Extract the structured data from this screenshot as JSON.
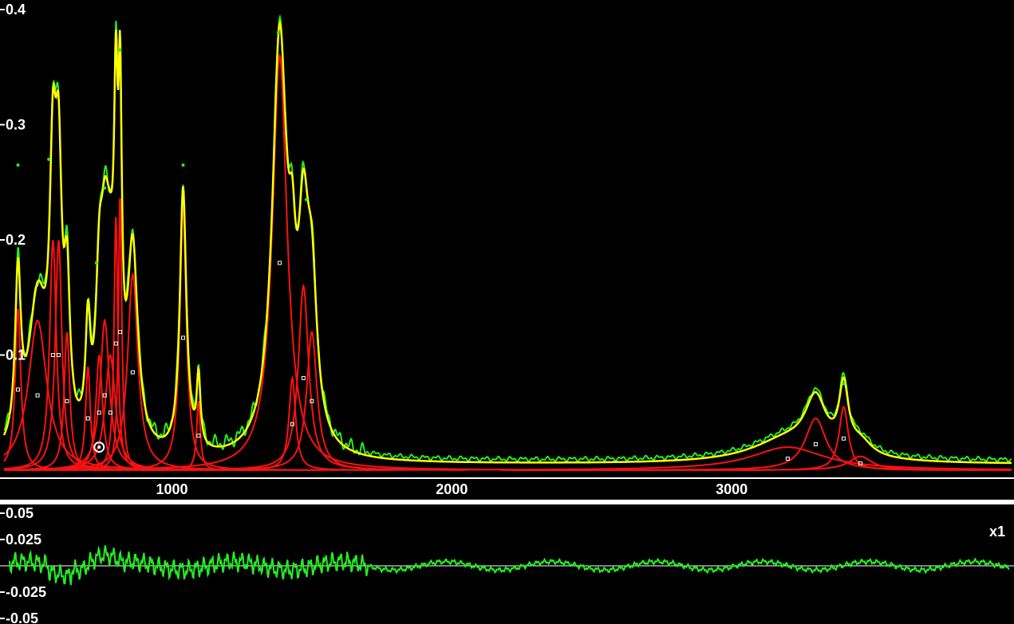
{
  "colors": {
    "background": "#000000",
    "separator": "#ffffff",
    "fit_envelope": "#ffff00",
    "measured": "#22ee22",
    "components": "#ff1010",
    "markers": "#ffffff",
    "residual": "#22ee22",
    "axis_text": "#ffffff"
  },
  "chart_data": [
    {
      "type": "line",
      "title": "",
      "xlabel": "",
      "ylabel": "",
      "xlim": [
        400,
        4000
      ],
      "ylim": [
        -0.02,
        0.4
      ],
      "x_ticks": [
        1000,
        2000,
        3000
      ],
      "x_tick_labels": [
        "1000",
        "2000",
        "3000"
      ],
      "y_ticks": [
        0.1,
        0.2,
        0.3,
        0.4
      ],
      "y_tick_labels": [
        "0.1",
        "0.2",
        "0.3",
        "0.4"
      ],
      "grid": false,
      "series": [
        {
          "role": "fitted-sum",
          "color": "#ffff00"
        },
        {
          "role": "measured",
          "color": "#22ee22"
        },
        {
          "role": "component-peaks",
          "color": "#ff1010"
        }
      ],
      "peaks": [
        {
          "center": 450,
          "height": 0.14,
          "width": 12
        },
        {
          "center": 520,
          "height": 0.13,
          "width": 40
        },
        {
          "center": 575,
          "height": 0.2,
          "width": 14
        },
        {
          "center": 595,
          "height": 0.2,
          "width": 14
        },
        {
          "center": 625,
          "height": 0.12,
          "width": 12
        },
        {
          "center": 700,
          "height": 0.09,
          "width": 10
        },
        {
          "center": 740,
          "height": 0.1,
          "width": 14
        },
        {
          "center": 760,
          "height": 0.13,
          "width": 20
        },
        {
          "center": 780,
          "height": 0.1,
          "width": 22
        },
        {
          "center": 800,
          "height": 0.22,
          "width": 8
        },
        {
          "center": 815,
          "height": 0.24,
          "width": 7
        },
        {
          "center": 860,
          "height": 0.17,
          "width": 22
        },
        {
          "center": 1040,
          "height": 0.23,
          "width": 14
        },
        {
          "center": 1095,
          "height": 0.06,
          "width": 8
        },
        {
          "center": 1385,
          "height": 0.36,
          "width": 32
        },
        {
          "center": 1430,
          "height": 0.08,
          "width": 14
        },
        {
          "center": 1470,
          "height": 0.16,
          "width": 22
        },
        {
          "center": 1500,
          "height": 0.12,
          "width": 22
        },
        {
          "center": 3200,
          "height": 0.02,
          "width": 160
        },
        {
          "center": 3300,
          "height": 0.045,
          "width": 45
        },
        {
          "center": 3400,
          "height": 0.055,
          "width": 20
        },
        {
          "center": 3460,
          "height": 0.012,
          "width": 50
        }
      ],
      "measured_markers": [
        {
          "x": 450,
          "y": 0.265
        },
        {
          "x": 560,
          "y": 0.27
        },
        {
          "x": 625,
          "y": 0.205
        },
        {
          "x": 730,
          "y": 0.18
        },
        {
          "x": 760,
          "y": 0.245
        },
        {
          "x": 815,
          "y": 0.365
        },
        {
          "x": 1040,
          "y": 0.265
        },
        {
          "x": 1380,
          "y": 0.38
        },
        {
          "x": 1480,
          "y": 0.235
        },
        {
          "x": 3400,
          "y": 0.075
        }
      ],
      "selected_point": {
        "x": 740,
        "y": 0.02
      }
    },
    {
      "type": "line",
      "title": "",
      "xlim": [
        400,
        4000
      ],
      "ylim": [
        -0.05,
        0.05
      ],
      "y_ticks": [
        0.05,
        0.025,
        -0.025,
        -0.05
      ],
      "y_tick_labels": [
        "0.05",
        "0.025",
        "-0.025",
        "-0.05"
      ],
      "scale_label": "x1",
      "grid": false,
      "series": [
        {
          "role": "residual",
          "color": "#22ee22"
        }
      ],
      "zero_line": 0
    }
  ]
}
